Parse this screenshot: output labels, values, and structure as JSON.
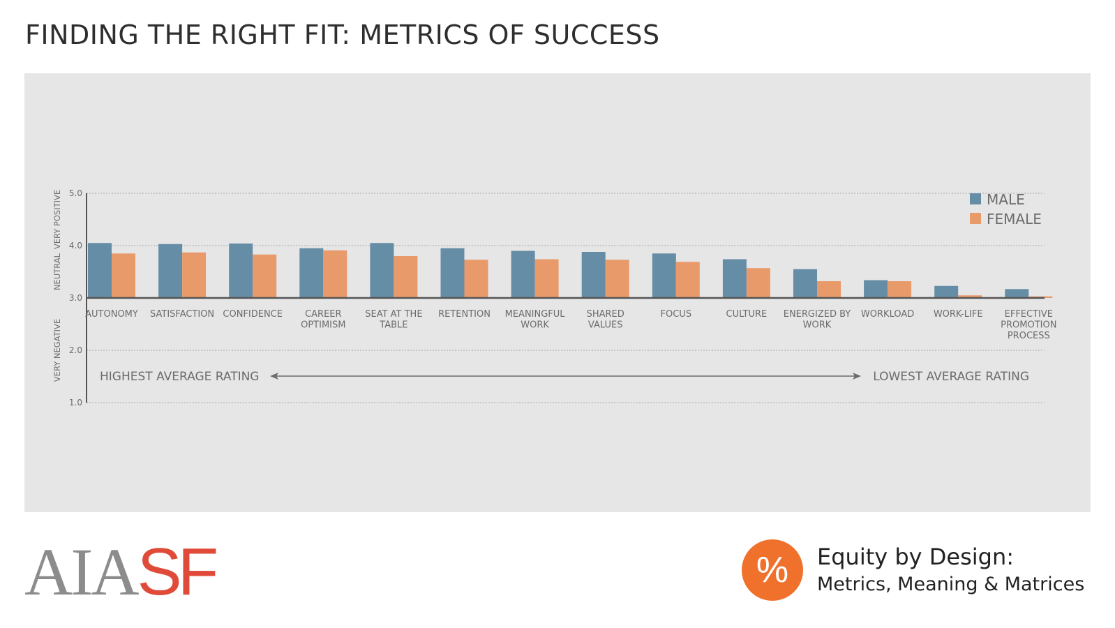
{
  "header": {
    "title": "FINDING THE RIGHT FIT: METRICS OF SUCCESS"
  },
  "branding": {
    "logo_aia": "AIA",
    "logo_sf": "SF",
    "badge_symbol": "%",
    "line1": "Equity by Design:",
    "line2": "Metrics, Meaning & Matrices"
  },
  "colors": {
    "male": "#668da6",
    "female": "#e89a6b",
    "panel": "#e6e6e6",
    "text": "#6b6b6b",
    "axis": "#555555"
  },
  "chart_data": {
    "type": "bar",
    "categories": [
      "AUTONOMY",
      "SATISFACTION",
      "CONFIDENCE",
      "CAREER\nOPTIMISM",
      "SEAT AT THE\nTABLE",
      "RETENTION",
      "MEANINGFUL\nWORK",
      "SHARED\nVALUES",
      "FOCUS",
      "CULTURE",
      "ENERGIZED BY\nWORK",
      "WORKLOAD",
      "WORK-LIFE",
      "EFFECTIVE\nPROMOTION\nPROCESS"
    ],
    "series": [
      {
        "name": "MALE",
        "values": [
          4.05,
          4.03,
          4.04,
          3.95,
          4.05,
          3.95,
          3.9,
          3.88,
          3.85,
          3.74,
          3.55,
          3.34,
          3.23,
          3.17
        ]
      },
      {
        "name": "FEMALE",
        "values": [
          3.85,
          3.87,
          3.83,
          3.91,
          3.8,
          3.73,
          3.74,
          3.73,
          3.69,
          3.57,
          3.32,
          3.32,
          3.05,
          3.03
        ]
      }
    ],
    "y_ticks": [
      "1.0",
      "2.0",
      "3.0",
      "4.0",
      "5.0"
    ],
    "ylim": [
      1.0,
      5.0
    ],
    "y_band_labels": [
      {
        "label": "VERY POSITIVE",
        "from": 4.0,
        "to": 5.0
      },
      {
        "label": "NEUTRAL",
        "from": 3.0,
        "to": 4.0
      },
      {
        "label": "VERY NEGATIVE",
        "from": 1.0,
        "to": 3.0
      }
    ],
    "baseline": 3.0,
    "grid": true,
    "legend": "top-right",
    "annotation_left": "HIGHEST AVERAGE RATING",
    "annotation_right": "LOWEST AVERAGE RATING"
  }
}
